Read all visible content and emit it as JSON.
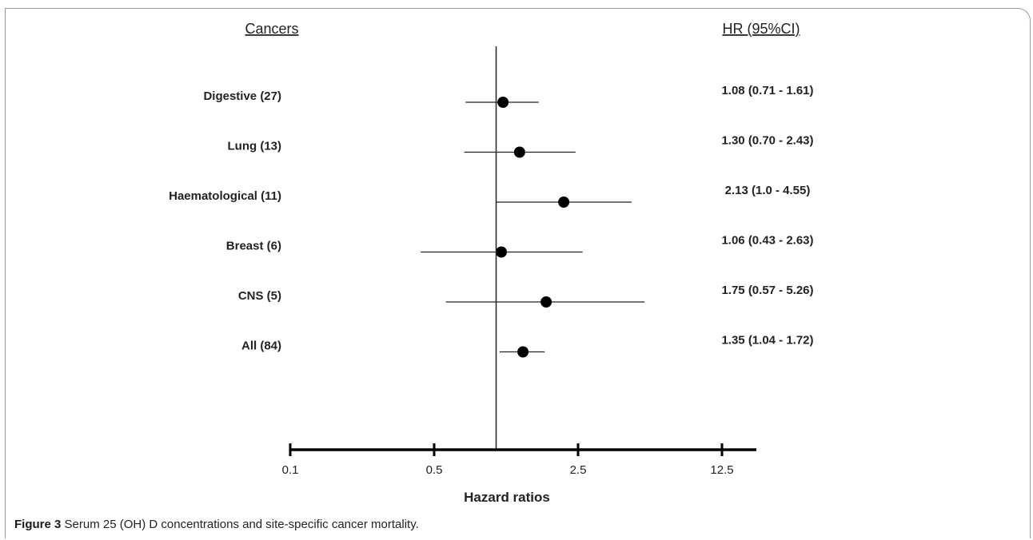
{
  "chart_data": {
    "type": "forest",
    "column_headers": {
      "labels": "Cancers",
      "values": "HR (95%CI)"
    },
    "xlabel": "Hazard ratios",
    "x_scale": "log",
    "xlim": [
      0.1,
      25
    ],
    "x_ticks": [
      {
        "value": 0.1,
        "label": "0.1"
      },
      {
        "value": 0.5,
        "label": "0.5"
      },
      {
        "value": 2.5,
        "label": "2.5"
      },
      {
        "value": 12.5,
        "label": "12.5"
      }
    ],
    "reference_line": 1,
    "rows": [
      {
        "label": "Digestive (27)",
        "hr": 1.08,
        "lo": 0.71,
        "hi": 1.61,
        "text": "1.08 (0.71 - 1.61)"
      },
      {
        "label": "Lung (13)",
        "hr": 1.3,
        "lo": 0.7,
        "hi": 2.43,
        "text": "1.30 (0.70 - 2.43)"
      },
      {
        "label": "Haematological (11)",
        "hr": 2.13,
        "lo": 1.0,
        "hi": 4.55,
        "text": "2.13 (1.0 - 4.55)"
      },
      {
        "label": "Breast (6)",
        "hr": 1.06,
        "lo": 0.43,
        "hi": 2.63,
        "text": "1.06 (0.43 - 2.63)"
      },
      {
        "label": "CNS (5)",
        "hr": 1.75,
        "lo": 0.57,
        "hi": 5.26,
        "text": "1.75 (0.57 - 5.26)"
      },
      {
        "label": "All (84)",
        "hr": 1.35,
        "lo": 1.04,
        "hi": 1.72,
        "text": "1.35 (1.04 - 1.72)"
      }
    ]
  },
  "caption": {
    "figure_number": "Figure 3",
    "text": "Serum 25 (OH) D concentrations and site-specific cancer mortality."
  }
}
